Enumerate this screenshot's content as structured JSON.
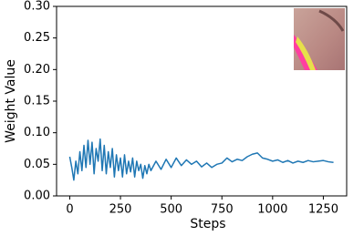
{
  "chart_data": {
    "type": "line",
    "xlabel": "Steps",
    "ylabel": "Weight Value",
    "x": [
      0,
      10,
      20,
      30,
      40,
      50,
      60,
      70,
      80,
      90,
      100,
      110,
      120,
      130,
      140,
      150,
      160,
      170,
      180,
      190,
      200,
      210,
      220,
      230,
      240,
      250,
      260,
      270,
      280,
      290,
      300,
      310,
      320,
      330,
      340,
      350,
      360,
      370,
      380,
      390,
      400,
      425,
      450,
      475,
      500,
      525,
      550,
      575,
      600,
      625,
      650,
      675,
      700,
      725,
      750,
      775,
      800,
      825,
      850,
      875,
      900,
      925,
      950,
      975,
      1000,
      1025,
      1050,
      1075,
      1100,
      1125,
      1150,
      1175,
      1200,
      1225,
      1250,
      1275,
      1300
    ],
    "series": [
      {
        "color": "#1f77b4",
        "values": [
          0.062,
          0.045,
          0.025,
          0.055,
          0.035,
          0.07,
          0.04,
          0.08,
          0.045,
          0.088,
          0.05,
          0.085,
          0.035,
          0.075,
          0.055,
          0.09,
          0.04,
          0.08,
          0.035,
          0.07,
          0.045,
          0.075,
          0.03,
          0.065,
          0.04,
          0.06,
          0.03,
          0.065,
          0.035,
          0.055,
          0.038,
          0.06,
          0.03,
          0.055,
          0.04,
          0.05,
          0.028,
          0.048,
          0.035,
          0.05,
          0.04,
          0.055,
          0.042,
          0.058,
          0.045,
          0.06,
          0.048,
          0.057,
          0.05,
          0.055,
          0.046,
          0.052,
          0.045,
          0.05,
          0.052,
          0.06,
          0.054,
          0.058,
          0.056,
          0.062,
          0.066,
          0.068,
          0.06,
          0.058,
          0.055,
          0.057,
          0.053,
          0.056,
          0.052,
          0.055,
          0.053,
          0.056,
          0.054,
          0.055,
          0.056,
          0.054,
          0.053
        ]
      }
    ],
    "xlim": [
      -65,
      1365
    ],
    "ylim": [
      0,
      0.3
    ],
    "xticks": [
      0,
      250,
      500,
      750,
      1000,
      1250
    ],
    "yticks": [
      {
        "value": 0,
        "label": "0.00"
      },
      {
        "value": 0.05,
        "label": "0.05"
      },
      {
        "value": 0.1,
        "label": "0.10"
      },
      {
        "value": 0.15,
        "label": "0.15"
      },
      {
        "value": 0.2,
        "label": "0.20"
      },
      {
        "value": 0.25,
        "label": "0.25"
      },
      {
        "value": 0.3,
        "label": "0.30"
      }
    ]
  }
}
